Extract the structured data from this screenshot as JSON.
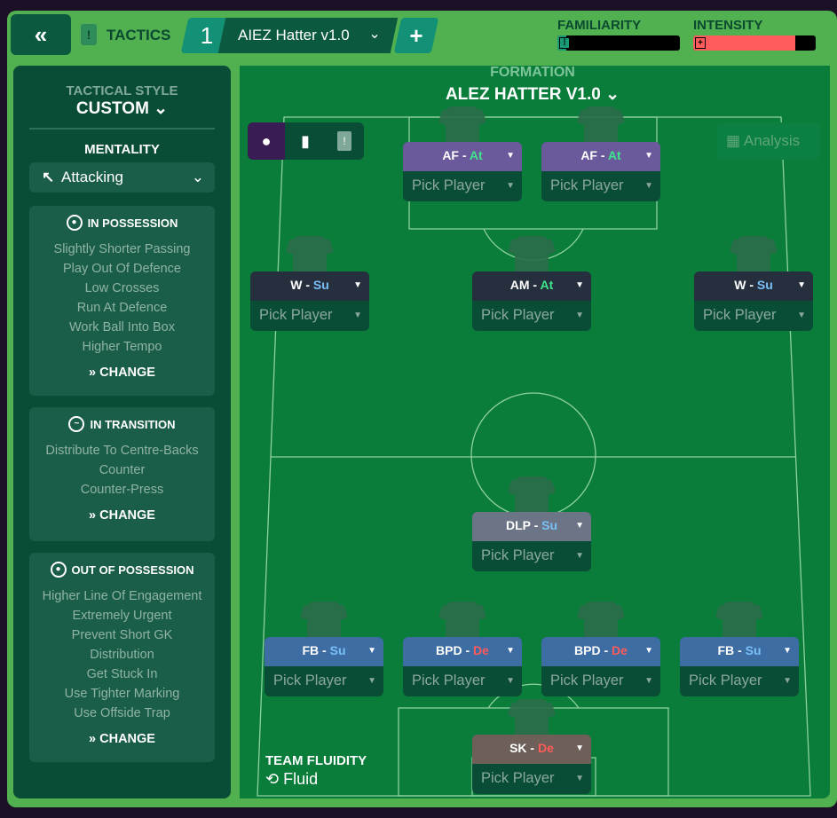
{
  "header": {
    "back_label": "«",
    "section": "TACTICS",
    "tactic_number": "1",
    "tactic_name": "AIEZ Hatter v1.0",
    "add_label": "+",
    "familiarity": {
      "label": "FAMILIARITY",
      "value": 0.07,
      "color": "#1a9b78"
    },
    "intensity": {
      "label": "INTENSITY",
      "value": 0.83,
      "color": "#ff5c5c"
    }
  },
  "sidebar": {
    "style_heading": "TACTICAL STYLE",
    "style_value": "CUSTOM",
    "mentality_heading": "MENTALITY",
    "mentality_value": "Attacking",
    "in_possession": {
      "title": "IN POSSESSION",
      "items": [
        "Slightly Shorter Passing",
        "Play Out Of Defence",
        "Low Crosses",
        "Run At Defence",
        "Work Ball Into Box",
        "Higher Tempo"
      ],
      "change": "CHANGE"
    },
    "in_transition": {
      "title": "IN TRANSITION",
      "items": [
        "Distribute To Centre-Backs",
        "Counter",
        "Counter-Press"
      ],
      "change": "CHANGE"
    },
    "out_of_possession": {
      "title": "OUT OF POSSESSION",
      "items": [
        "Higher Line Of Engagement",
        "Extremely Urgent",
        "Prevent Short GK",
        "Distribution",
        "Get Stuck In",
        "Use Tighter Marking",
        "Use Offside Trap"
      ],
      "change": "CHANGE"
    }
  },
  "pitch": {
    "formation_heading": "FORMATION",
    "formation_name": "ALEZ HATTER V1.0",
    "analysis_label": "Analysis",
    "fluidity_heading": "TEAM FLUIDITY",
    "fluidity_value": "Fluid",
    "pick_label": "Pick Player",
    "positions": [
      {
        "role": "AF",
        "duty": "At",
        "duty_class": "at",
        "color": "#6a5a9c"
      },
      {
        "role": "AF",
        "duty": "At",
        "duty_class": "at",
        "color": "#6a5a9c"
      },
      {
        "role": "W",
        "duty": "Su",
        "duty_class": "su",
        "color": "#262f3d"
      },
      {
        "role": "AM",
        "duty": "At",
        "duty_class": "at",
        "color": "#262f3d"
      },
      {
        "role": "W",
        "duty": "Su",
        "duty_class": "su",
        "color": "#262f3d"
      },
      {
        "role": "DLP",
        "duty": "Su",
        "duty_class": "su",
        "color": "#6c7586"
      },
      {
        "role": "FB",
        "duty": "Su",
        "duty_class": "su",
        "color": "#3e6da4"
      },
      {
        "role": "BPD",
        "duty": "De",
        "duty_class": "de",
        "color": "#3e6da4"
      },
      {
        "role": "BPD",
        "duty": "De",
        "duty_class": "de",
        "color": "#3e6da4"
      },
      {
        "role": "FB",
        "duty": "Su",
        "duty_class": "su",
        "color": "#3e6da4"
      },
      {
        "role": "SK",
        "duty": "De",
        "duty_class": "de",
        "color": "#6e6059"
      }
    ]
  }
}
